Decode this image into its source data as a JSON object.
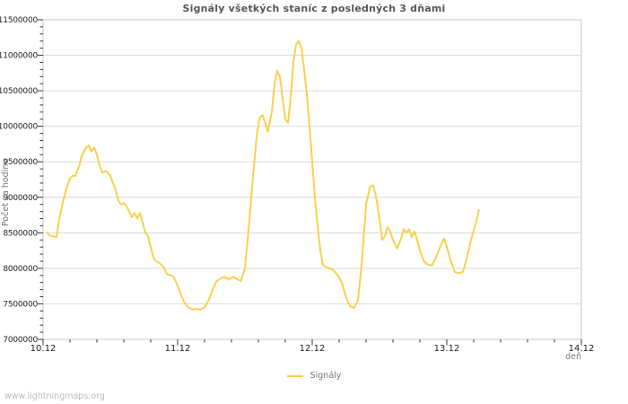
{
  "watermark": {
    "text": "www.lightningmaps.org"
  },
  "colors": {
    "background": "#ffffff",
    "line": "#FAD04E",
    "grid": "#D9D9D9",
    "frame": "#C8C8C8",
    "tick": "#333333",
    "tick_label": "#222222",
    "title": "#555555",
    "axis_name": "#777777",
    "legend_text": "#777777",
    "watermark": "#BBBBBB"
  },
  "chart_data": {
    "type": "line",
    "title": "Signály všetkých staníc z posledných 3 dňami",
    "xlabel": "deň",
    "ylabel": "Počet za hodinu",
    "grid": "horizontal-major-only",
    "x_axis": {
      "lim": [
        0,
        4
      ],
      "major_ticks": [
        {
          "t": 0,
          "label": "10.12"
        },
        {
          "t": 1,
          "label": "11.12"
        },
        {
          "t": 2,
          "label": "12.12"
        },
        {
          "t": 3,
          "label": "13.12"
        },
        {
          "t": 4,
          "label": "14.12"
        }
      ],
      "minor_step": 0.2
    },
    "y_axis": {
      "lim": [
        7000000,
        11500000
      ],
      "major_step": 500000,
      "minor_step": 100000,
      "tick_labels": [
        "11500000",
        "11000000",
        "10500000",
        "10000000",
        "9500000",
        "9000000",
        "8500000",
        "8000000",
        "7500000",
        "7000000"
      ]
    },
    "legend": {
      "position": "bottom-center",
      "entries": [
        {
          "label": "Signály",
          "color": "#FAD04E"
        }
      ]
    },
    "series": [
      {
        "name": "Signály",
        "color": "#FAD04E",
        "points": [
          [
            0.03,
            8500000
          ],
          [
            0.05,
            8460000
          ],
          [
            0.08,
            8450000
          ],
          [
            0.1,
            8440000
          ],
          [
            0.12,
            8700000
          ],
          [
            0.15,
            8950000
          ],
          [
            0.17,
            9100000
          ],
          [
            0.2,
            9270000
          ],
          [
            0.22,
            9300000
          ],
          [
            0.24,
            9300000
          ],
          [
            0.27,
            9450000
          ],
          [
            0.29,
            9600000
          ],
          [
            0.32,
            9700000
          ],
          [
            0.34,
            9730000
          ],
          [
            0.36,
            9650000
          ],
          [
            0.38,
            9700000
          ],
          [
            0.4,
            9600000
          ],
          [
            0.42,
            9450000
          ],
          [
            0.44,
            9350000
          ],
          [
            0.47,
            9370000
          ],
          [
            0.5,
            9300000
          ],
          [
            0.52,
            9200000
          ],
          [
            0.54,
            9100000
          ],
          [
            0.56,
            8950000
          ],
          [
            0.58,
            8900000
          ],
          [
            0.6,
            8920000
          ],
          [
            0.62,
            8880000
          ],
          [
            0.64,
            8800000
          ],
          [
            0.66,
            8720000
          ],
          [
            0.68,
            8780000
          ],
          [
            0.7,
            8700000
          ],
          [
            0.72,
            8780000
          ],
          [
            0.74,
            8650000
          ],
          [
            0.76,
            8500000
          ],
          [
            0.78,
            8450000
          ],
          [
            0.8,
            8300000
          ],
          [
            0.82,
            8150000
          ],
          [
            0.84,
            8100000
          ],
          [
            0.86,
            8080000
          ],
          [
            0.88,
            8050000
          ],
          [
            0.9,
            8000000
          ],
          [
            0.92,
            7920000
          ],
          [
            0.95,
            7900000
          ],
          [
            0.97,
            7880000
          ],
          [
            0.99,
            7800000
          ],
          [
            1.02,
            7650000
          ],
          [
            1.05,
            7520000
          ],
          [
            1.08,
            7450000
          ],
          [
            1.11,
            7420000
          ],
          [
            1.14,
            7430000
          ],
          [
            1.17,
            7420000
          ],
          [
            1.2,
            7450000
          ],
          [
            1.23,
            7550000
          ],
          [
            1.26,
            7700000
          ],
          [
            1.29,
            7820000
          ],
          [
            1.32,
            7860000
          ],
          [
            1.35,
            7880000
          ],
          [
            1.38,
            7840000
          ],
          [
            1.41,
            7880000
          ],
          [
            1.44,
            7850000
          ],
          [
            1.47,
            7820000
          ],
          [
            1.5,
            8000000
          ],
          [
            1.53,
            8600000
          ],
          [
            1.56,
            9300000
          ],
          [
            1.59,
            9900000
          ],
          [
            1.61,
            10120000
          ],
          [
            1.63,
            10160000
          ],
          [
            1.65,
            10050000
          ],
          [
            1.67,
            9920000
          ],
          [
            1.7,
            10200000
          ],
          [
            1.72,
            10600000
          ],
          [
            1.74,
            10780000
          ],
          [
            1.76,
            10700000
          ],
          [
            1.78,
            10400000
          ],
          [
            1.8,
            10100000
          ],
          [
            1.82,
            10050000
          ],
          [
            1.84,
            10400000
          ],
          [
            1.86,
            10900000
          ],
          [
            1.88,
            11150000
          ],
          [
            1.9,
            11200000
          ],
          [
            1.92,
            11100000
          ],
          [
            1.94,
            10800000
          ],
          [
            1.96,
            10450000
          ],
          [
            1.98,
            10000000
          ],
          [
            2.0,
            9500000
          ],
          [
            2.02,
            9000000
          ],
          [
            2.04,
            8600000
          ],
          [
            2.06,
            8250000
          ],
          [
            2.08,
            8050000
          ],
          [
            2.1,
            8020000
          ],
          [
            2.13,
            8000000
          ],
          [
            2.16,
            7970000
          ],
          [
            2.19,
            7900000
          ],
          [
            2.22,
            7800000
          ],
          [
            2.25,
            7600000
          ],
          [
            2.28,
            7470000
          ],
          [
            2.31,
            7440000
          ],
          [
            2.34,
            7550000
          ],
          [
            2.37,
            8100000
          ],
          [
            2.4,
            8900000
          ],
          [
            2.43,
            9150000
          ],
          [
            2.45,
            9170000
          ],
          [
            2.47,
            9050000
          ],
          [
            2.5,
            8700000
          ],
          [
            2.52,
            8400000
          ],
          [
            2.54,
            8450000
          ],
          [
            2.56,
            8580000
          ],
          [
            2.58,
            8520000
          ],
          [
            2.6,
            8400000
          ],
          [
            2.63,
            8280000
          ],
          [
            2.66,
            8420000
          ],
          [
            2.68,
            8550000
          ],
          [
            2.7,
            8500000
          ],
          [
            2.72,
            8550000
          ],
          [
            2.74,
            8440000
          ],
          [
            2.76,
            8520000
          ],
          [
            2.78,
            8400000
          ],
          [
            2.8,
            8250000
          ],
          [
            2.83,
            8100000
          ],
          [
            2.86,
            8050000
          ],
          [
            2.89,
            8040000
          ],
          [
            2.92,
            8150000
          ],
          [
            2.95,
            8300000
          ],
          [
            2.98,
            8420000
          ],
          [
            3.0,
            8300000
          ],
          [
            3.03,
            8100000
          ],
          [
            3.06,
            7950000
          ],
          [
            3.09,
            7930000
          ],
          [
            3.12,
            7950000
          ],
          [
            3.15,
            8150000
          ],
          [
            3.18,
            8400000
          ],
          [
            3.21,
            8600000
          ],
          [
            3.24,
            8820000
          ]
        ]
      }
    ]
  }
}
